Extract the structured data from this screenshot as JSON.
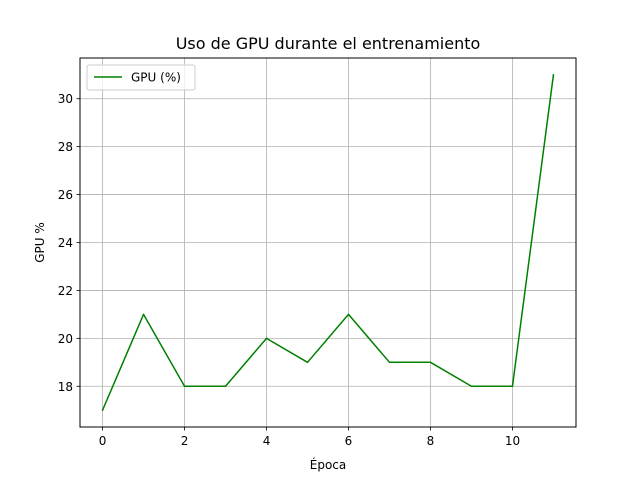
{
  "chart_data": {
    "type": "line",
    "title": "Uso de GPU durante el entrenamiento",
    "xlabel": "Época",
    "ylabel": "GPU %",
    "xlim": [
      -0.55,
      11.55
    ],
    "ylim": [
      16.3,
      31.7
    ],
    "xticks": [
      0,
      2,
      4,
      6,
      8,
      10
    ],
    "yticks": [
      18,
      20,
      22,
      24,
      26,
      28,
      30
    ],
    "grid": true,
    "legend_position": "top-left",
    "series": [
      {
        "name": "GPU (%)",
        "color": "#008000",
        "x": [
          0,
          1,
          2,
          3,
          4,
          5,
          6,
          7,
          8,
          9,
          10,
          11
        ],
        "y": [
          17,
          21,
          18,
          18,
          20,
          19,
          21,
          19,
          19,
          18,
          18,
          31
        ]
      }
    ]
  }
}
